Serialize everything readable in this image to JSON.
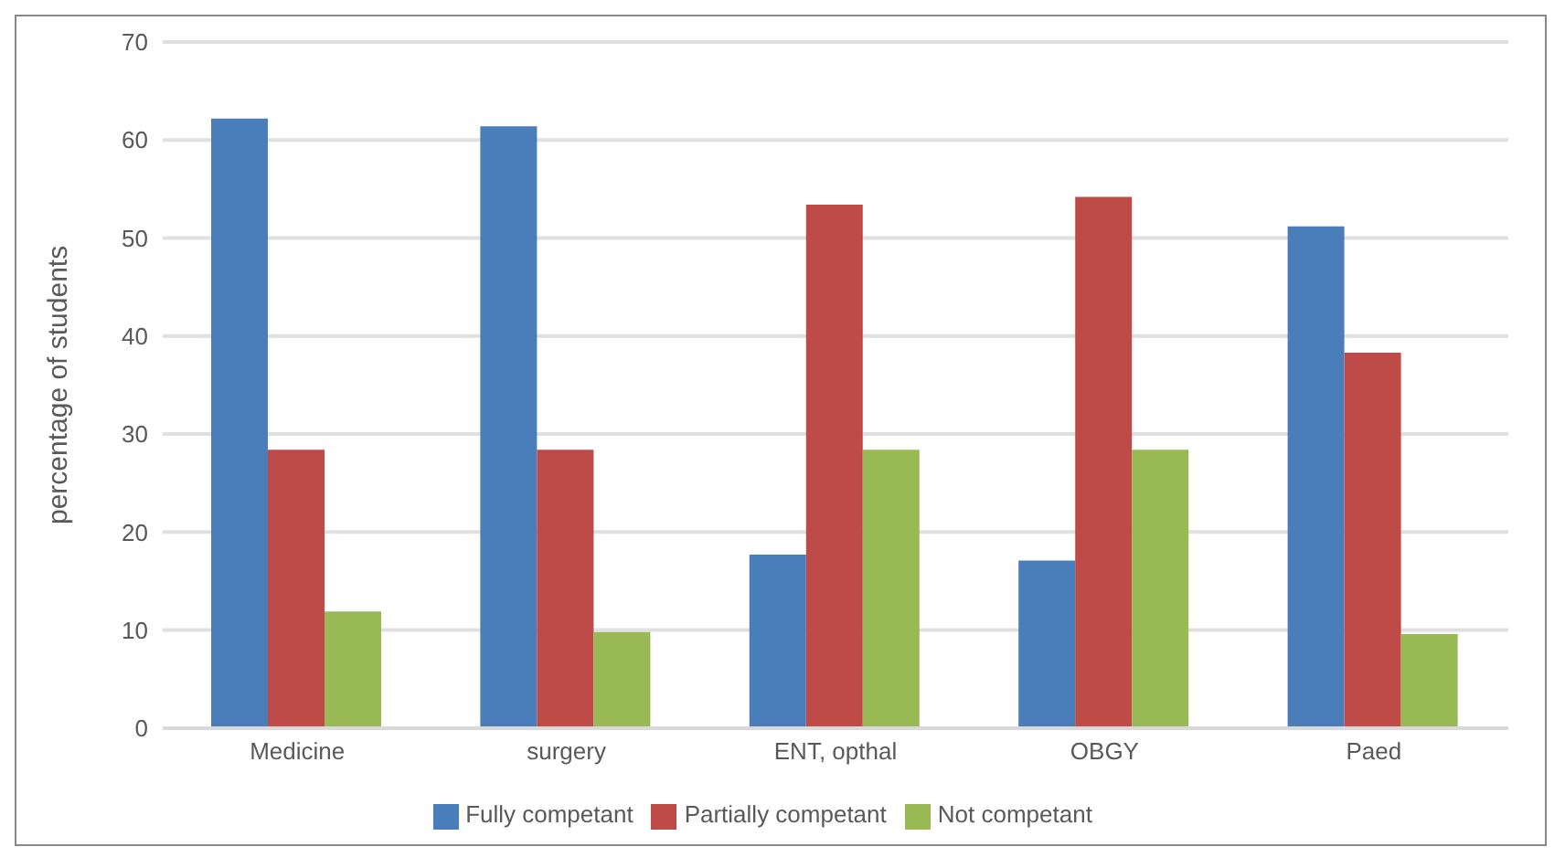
{
  "chart_data": {
    "type": "bar",
    "ylabel": "percentage of students",
    "categories": [
      "Medicine",
      "surgery",
      "ENT, opthal",
      "OBGY",
      "Paed"
    ],
    "series": [
      {
        "name": "Fully competant",
        "color": "#4a7ebb",
        "values": [
          62.2,
          61.4,
          17.7,
          17.1,
          51.2
        ]
      },
      {
        "name": "Partially competant",
        "color": "#be4b48",
        "values": [
          28.4,
          28.4,
          53.4,
          54.2,
          38.3
        ]
      },
      {
        "name": "Not competant",
        "color": "#98b954",
        "values": [
          11.9,
          9.8,
          28.4,
          28.4,
          9.6
        ]
      }
    ],
    "ylim": [
      0,
      70
    ],
    "yticks": [
      0,
      10,
      20,
      30,
      40,
      50,
      60,
      70
    ],
    "grid": "y",
    "legend": "bottom"
  }
}
